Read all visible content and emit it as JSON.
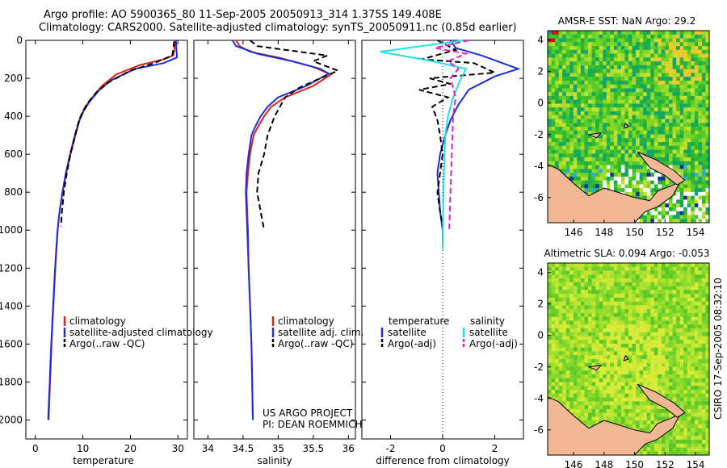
{
  "header": {
    "line1": "Argo profile: AO 5900365_80 11-Sep-2005 20050913_314 1.375S 149.408E",
    "line2": "Climatology: CARS2000. Satellite-adjusted climatology: synTS_20050911.nc (0.85d earlier)"
  },
  "side_label": "CSIRO 17-Sep-2005 08:32:10",
  "project": {
    "line1": "US ARGO PROJECT",
    "line2": "PI: DEAN ROEMMICH"
  },
  "colors": {
    "clim": "#e0201a",
    "sat": "#1b2fd8",
    "argo": "#000000",
    "sat_sal": "#22e0e8",
    "argo_sal": "#e020d0",
    "land": "#f2b896"
  },
  "chart_data": [
    {
      "type": "line",
      "id": "temperature",
      "xlabel": "temperature",
      "ylabel": "",
      "xlim": [
        -2,
        32
      ],
      "ylim": [
        2100,
        0
      ],
      "xticks": [
        0,
        10,
        20,
        30
      ],
      "yticks": [
        0,
        200,
        400,
        600,
        800,
        1000,
        1200,
        1400,
        1600,
        1800,
        2000
      ],
      "legend": [
        "climatology",
        "satellite-adjusted climatology",
        "Argo(..raw -QC)"
      ],
      "series": [
        {
          "name": "climatology",
          "color": "#e0201a",
          "dash": false,
          "points": [
            [
              29.4,
              0
            ],
            [
              29.3,
              50
            ],
            [
              29.0,
              80
            ],
            [
              27,
              100
            ],
            [
              22,
              130
            ],
            [
              17,
              180
            ],
            [
              14,
              240
            ],
            [
              12,
              300
            ],
            [
              10.5,
              350
            ],
            [
              9.5,
              400
            ],
            [
              8.3,
              500
            ],
            [
              7.3,
              600
            ],
            [
              6.4,
              700
            ],
            [
              5.7,
              800
            ],
            [
              5.1,
              900
            ],
            [
              4.7,
              1000
            ],
            [
              4.2,
              1200
            ],
            [
              3.8,
              1400
            ],
            [
              3.4,
              1600
            ],
            [
              3.1,
              1800
            ],
            [
              2.8,
              2000
            ]
          ]
        },
        {
          "name": "satellite-adjusted climatology",
          "color": "#1b2fd8",
          "dash": false,
          "points": [
            [
              29.6,
              0
            ],
            [
              29.7,
              50
            ],
            [
              29.8,
              90
            ],
            [
              27,
              120
            ],
            [
              21,
              150
            ],
            [
              16,
              210
            ],
            [
              13.5,
              260
            ],
            [
              11.5,
              320
            ],
            [
              10.2,
              370
            ],
            [
              9.3,
              420
            ],
            [
              8.2,
              520
            ],
            [
              7.2,
              620
            ],
            [
              6.3,
              720
            ],
            [
              5.6,
              820
            ],
            [
              5.0,
              920
            ],
            [
              4.6,
              1020
            ],
            [
              4.1,
              1220
            ],
            [
              3.7,
              1420
            ],
            [
              3.3,
              1620
            ],
            [
              3.0,
              1820
            ],
            [
              2.7,
              2000
            ]
          ]
        },
        {
          "name": "Argo(..raw -QC)",
          "color": "#000000",
          "dash": true,
          "points": [
            [
              29.2,
              5
            ],
            [
              29.1,
              40
            ],
            [
              28.8,
              80
            ],
            [
              25,
              120
            ],
            [
              20,
              160
            ],
            [
              15.5,
              220
            ],
            [
              13,
              270
            ],
            [
              11,
              330
            ],
            [
              10,
              380
            ],
            [
              9.2,
              420
            ],
            [
              8.2,
              520
            ],
            [
              7.4,
              600
            ],
            [
              6.6,
              700
            ],
            [
              6.0,
              800
            ],
            [
              5.6,
              900
            ],
            [
              5.4,
              980
            ]
          ]
        }
      ]
    },
    {
      "type": "line",
      "id": "salinity",
      "xlabel": "salinity",
      "ylabel": "",
      "xlim": [
        33.8,
        36.1
      ],
      "ylim": [
        2100,
        0
      ],
      "xticks": [
        34,
        34.5,
        35,
        35.5,
        36
      ],
      "legend": [
        "climatology",
        "satellite adj. clim.",
        "Argo(..raw -QC)"
      ],
      "series": [
        {
          "name": "climatology",
          "color": "#e0201a",
          "dash": false,
          "points": [
            [
              34.4,
              0
            ],
            [
              34.45,
              30
            ],
            [
              34.6,
              60
            ],
            [
              35.0,
              90
            ],
            [
              35.5,
              140
            ],
            [
              35.75,
              180
            ],
            [
              35.5,
              240
            ],
            [
              35.1,
              300
            ],
            [
              34.9,
              350
            ],
            [
              34.8,
              400
            ],
            [
              34.72,
              450
            ],
            [
              34.65,
              500
            ],
            [
              34.6,
              600
            ],
            [
              34.57,
              700
            ],
            [
              34.55,
              800
            ],
            [
              34.56,
              900
            ],
            [
              34.57,
              1000
            ],
            [
              34.58,
              1200
            ],
            [
              34.6,
              1400
            ],
            [
              34.62,
              1600
            ],
            [
              34.63,
              1800
            ],
            [
              34.64,
              2000
            ]
          ]
        },
        {
          "name": "satellite adj. clim.",
          "color": "#1b2fd8",
          "dash": false,
          "points": [
            [
              34.35,
              0
            ],
            [
              34.4,
              30
            ],
            [
              34.7,
              70
            ],
            [
              35.2,
              110
            ],
            [
              35.6,
              150
            ],
            [
              35.72,
              175
            ],
            [
              35.4,
              240
            ],
            [
              35.0,
              300
            ],
            [
              34.85,
              350
            ],
            [
              34.75,
              400
            ],
            [
              34.68,
              450
            ],
            [
              34.62,
              500
            ],
            [
              34.58,
              600
            ],
            [
              34.55,
              700
            ],
            [
              34.54,
              800
            ],
            [
              34.55,
              900
            ],
            [
              34.56,
              1000
            ],
            [
              34.58,
              1200
            ],
            [
              34.6,
              1400
            ],
            [
              34.62,
              1600
            ],
            [
              34.63,
              1800
            ],
            [
              34.64,
              2000
            ]
          ]
        },
        {
          "name": "Argo(..raw -QC)",
          "color": "#000000",
          "dash": true,
          "points": [
            [
              34.6,
              0
            ],
            [
              34.7,
              30
            ],
            [
              35.3,
              60
            ],
            [
              35.7,
              80
            ],
            [
              35.5,
              110
            ],
            [
              35.85,
              160
            ],
            [
              35.6,
              200
            ],
            [
              35.3,
              250
            ],
            [
              35.1,
              300
            ],
            [
              34.95,
              400
            ],
            [
              34.85,
              500
            ],
            [
              34.8,
              600
            ],
            [
              34.72,
              700
            ],
            [
              34.7,
              800
            ],
            [
              34.75,
              900
            ],
            [
              34.8,
              1000
            ]
          ]
        }
      ]
    },
    {
      "type": "line",
      "id": "difference",
      "xlabel": "difference from climatology",
      "ylabel": "",
      "xlim": [
        -3.1,
        3.1
      ],
      "ylim": [
        2100,
        0
      ],
      "xticks": [
        -2,
        0,
        2
      ],
      "legend_headers": [
        "temperature",
        "salinity"
      ],
      "legend": [
        "satellite",
        "Argo(-adj)",
        "satellite",
        "Argo(-adj)"
      ],
      "series": [
        {
          "name": "satellite (temperature)",
          "color": "#1b2fd8",
          "dash": false,
          "points": [
            [
              0.3,
              0
            ],
            [
              0.5,
              40
            ],
            [
              1.5,
              80
            ],
            [
              2.9,
              150
            ],
            [
              2.0,
              190
            ],
            [
              1.0,
              260
            ],
            [
              0.6,
              340
            ],
            [
              0.3,
              420
            ],
            [
              0.1,
              500
            ],
            [
              -0.1,
              600
            ],
            [
              -0.2,
              700
            ],
            [
              -0.15,
              800
            ],
            [
              -0.1,
              900
            ],
            [
              0,
              1000
            ],
            [
              0,
              1100
            ]
          ]
        },
        {
          "name": "Argo(-adj) (temperature)",
          "color": "#000000",
          "dash": true,
          "points": [
            [
              -0.2,
              0
            ],
            [
              0.5,
              50
            ],
            [
              -0.8,
              100
            ],
            [
              1.2,
              120
            ],
            [
              2.0,
              170
            ],
            [
              -0.5,
              200
            ],
            [
              0.3,
              230
            ],
            [
              -0.9,
              260
            ],
            [
              0.2,
              300
            ],
            [
              -0.4,
              350
            ],
            [
              -0.2,
              420
            ],
            [
              -0.1,
              500
            ],
            [
              0,
              600
            ],
            [
              -0.1,
              700
            ],
            [
              -0.2,
              800
            ],
            [
              -0.1,
              900
            ],
            [
              0,
              980
            ]
          ]
        },
        {
          "name": "satellite (salinity)",
          "color": "#22e0e8",
          "dash": false,
          "points": [
            [
              0.8,
              0
            ],
            [
              -2.4,
              60
            ],
            [
              -0.4,
              110
            ],
            [
              0.9,
              150
            ],
            [
              0.7,
              200
            ],
            [
              0.4,
              300
            ],
            [
              0.2,
              400
            ],
            [
              0.1,
              500
            ],
            [
              0.05,
              700
            ],
            [
              0.02,
              900
            ],
            [
              0,
              1100
            ]
          ]
        },
        {
          "name": "Argo(-adj) (salinity)",
          "color": "#e020d0",
          "dash": true,
          "points": [
            [
              1.0,
              0
            ],
            [
              -0.3,
              40
            ],
            [
              0.9,
              70
            ],
            [
              0.2,
              110
            ],
            [
              0.6,
              150
            ],
            [
              0.3,
              200
            ],
            [
              0.5,
              300
            ],
            [
              0.4,
              400
            ],
            [
              0.35,
              600
            ],
            [
              0.3,
              800
            ],
            [
              0.25,
              1000
            ]
          ]
        }
      ]
    },
    {
      "type": "heatmap",
      "id": "sst",
      "title": "AMSR-E SST: NaN Argo: 29.2",
      "xlim": [
        144.3,
        154.9
      ],
      "ylim": [
        -7.6,
        4.6
      ],
      "xticks": [
        146,
        148,
        150,
        152,
        154
      ],
      "yticks": [
        -6,
        -4,
        -2,
        0,
        2,
        4
      ]
    },
    {
      "type": "heatmap",
      "id": "sla",
      "title": "Altimetric SLA: 0.094 Argo: -0.053",
      "xlim": [
        144.3,
        154.9
      ],
      "ylim": [
        -7.6,
        4.6
      ],
      "xticks": [
        146,
        148,
        150,
        152,
        154
      ],
      "yticks": [
        -6,
        -4,
        -2,
        0,
        2,
        4
      ]
    }
  ]
}
